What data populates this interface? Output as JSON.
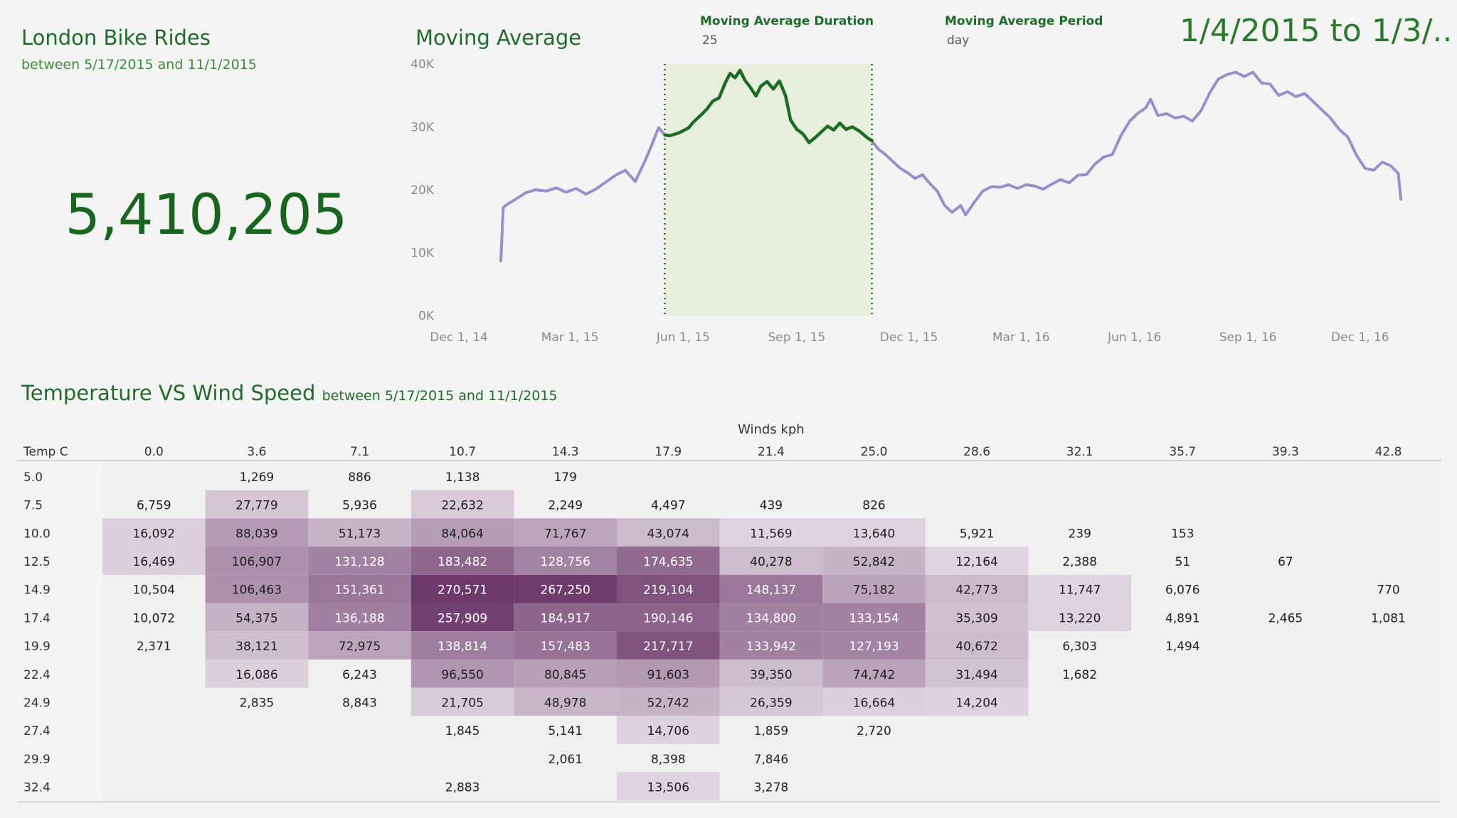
{
  "header": {
    "title": "London Bike Rides",
    "subtitle": "between 5/17/2015 and 11/1/2015",
    "kpi": "5,410,205"
  },
  "moving_average": {
    "title": "Moving Average",
    "duration_label": "Moving Average Duration",
    "duration_value": "25",
    "period_label": "Moving Average Period",
    "period_value": "day",
    "date_range": "1/4/2015 to 1/3/.."
  },
  "heatmap_header": {
    "title": "Temperature VS Wind Speed",
    "subtitle": "between 5/17/2015 and 11/1/2015"
  },
  "colors": {
    "line_other": "#9a8fcc",
    "line_selected": "#1b6b22",
    "selection_band": "#e7eedb",
    "heat_low": "#ebe5ec",
    "heat_high": "#6e3a6c"
  },
  "chart_data": [
    {
      "type": "line",
      "title": "Moving Average",
      "xlabel": "",
      "ylabel": "",
      "x_ticks": [
        "Dec 1, 14",
        "Mar 1, 15",
        "Jun 1, 15",
        "Sep 1, 15",
        "Dec 1, 15",
        "Mar 1, 16",
        "Jun 1, 16",
        "Sep 1, 16",
        "Dec 1, 16"
      ],
      "y_ticks": [
        "0K",
        "10K",
        "20K",
        "30K",
        "40K"
      ],
      "ylim": [
        0,
        40000
      ],
      "x_range": [
        "2014-11-20",
        "2017-01-18"
      ],
      "selection": {
        "start": "2015-05-17",
        "end": "2015-11-01"
      },
      "series": [
        {
          "points": [
            [
              "2015-01-04",
              8700
            ],
            [
              "2015-01-06",
              17200
            ],
            [
              "2015-01-10",
              17800
            ],
            [
              "2015-01-16",
              18500
            ],
            [
              "2015-01-24",
              19500
            ],
            [
              "2015-02-01",
              20000
            ],
            [
              "2015-02-10",
              19800
            ],
            [
              "2015-02-18",
              20300
            ],
            [
              "2015-02-26",
              19600
            ],
            [
              "2015-03-06",
              20200
            ],
            [
              "2015-03-14",
              19300
            ],
            [
              "2015-03-22",
              20100
            ],
            [
              "2015-03-30",
              21200
            ],
            [
              "2015-04-07",
              22300
            ],
            [
              "2015-04-15",
              23100
            ],
            [
              "2015-04-23",
              21300
            ],
            [
              "2015-05-01",
              24600
            ],
            [
              "2015-05-06",
              26900
            ],
            [
              "2015-05-12",
              29900
            ],
            [
              "2015-05-17",
              28700
            ],
            [
              "2015-05-21",
              28600
            ],
            [
              "2015-05-28",
              29000
            ],
            [
              "2015-06-05",
              29800
            ],
            [
              "2015-06-10",
              30900
            ],
            [
              "2015-06-16",
              32000
            ],
            [
              "2015-06-20",
              32800
            ],
            [
              "2015-06-25",
              34100
            ],
            [
              "2015-06-30",
              34600
            ],
            [
              "2015-07-05",
              37000
            ],
            [
              "2015-07-09",
              38500
            ],
            [
              "2015-07-13",
              37800
            ],
            [
              "2015-07-17",
              39000
            ],
            [
              "2015-07-21",
              37400
            ],
            [
              "2015-07-25",
              36400
            ],
            [
              "2015-07-30",
              34900
            ],
            [
              "2015-08-03",
              36500
            ],
            [
              "2015-08-08",
              37200
            ],
            [
              "2015-08-13",
              36000
            ],
            [
              "2015-08-18",
              37300
            ],
            [
              "2015-08-23",
              34900
            ],
            [
              "2015-08-27",
              31100
            ],
            [
              "2015-09-01",
              29600
            ],
            [
              "2015-09-06",
              28900
            ],
            [
              "2015-09-11",
              27500
            ],
            [
              "2015-09-16",
              28300
            ],
            [
              "2015-09-21",
              29200
            ],
            [
              "2015-09-26",
              30100
            ],
            [
              "2015-10-01",
              29500
            ],
            [
              "2015-10-06",
              30600
            ],
            [
              "2015-10-11",
              29600
            ],
            [
              "2015-10-16",
              30000
            ],
            [
              "2015-10-22",
              29300
            ],
            [
              "2015-10-28",
              28300
            ],
            [
              "2015-11-01",
              27800
            ],
            [
              "2015-11-06",
              26500
            ],
            [
              "2015-11-12",
              25600
            ],
            [
              "2015-11-18",
              24500
            ],
            [
              "2015-11-24",
              23400
            ],
            [
              "2015-11-30",
              22700
            ],
            [
              "2015-12-06",
              21800
            ],
            [
              "2015-12-12",
              22400
            ],
            [
              "2015-12-18",
              21000
            ],
            [
              "2015-12-24",
              19800
            ],
            [
              "2015-12-30",
              17500
            ],
            [
              "2016-01-05",
              16400
            ],
            [
              "2016-01-12",
              17500
            ],
            [
              "2016-01-16",
              16000
            ],
            [
              "2016-01-23",
              18000
            ],
            [
              "2016-01-30",
              19800
            ],
            [
              "2016-02-06",
              20500
            ],
            [
              "2016-02-13",
              20400
            ],
            [
              "2016-02-20",
              20800
            ],
            [
              "2016-02-27",
              20200
            ],
            [
              "2016-03-05",
              20800
            ],
            [
              "2016-03-12",
              20600
            ],
            [
              "2016-03-19",
              20100
            ],
            [
              "2016-03-26",
              20900
            ],
            [
              "2016-04-02",
              21600
            ],
            [
              "2016-04-09",
              21100
            ],
            [
              "2016-04-16",
              22300
            ],
            [
              "2016-04-23",
              22400
            ],
            [
              "2016-04-30",
              24100
            ],
            [
              "2016-05-07",
              25200
            ],
            [
              "2016-05-14",
              25600
            ],
            [
              "2016-05-21",
              28600
            ],
            [
              "2016-05-28",
              30900
            ],
            [
              "2016-06-04",
              32200
            ],
            [
              "2016-06-10",
              33000
            ],
            [
              "2016-06-14",
              34400
            ],
            [
              "2016-06-20",
              31800
            ],
            [
              "2016-06-27",
              32100
            ],
            [
              "2016-07-04",
              31400
            ],
            [
              "2016-07-11",
              31700
            ],
            [
              "2016-07-18",
              30900
            ],
            [
              "2016-07-25",
              32600
            ],
            [
              "2016-08-01",
              35400
            ],
            [
              "2016-08-08",
              37600
            ],
            [
              "2016-08-15",
              38300
            ],
            [
              "2016-08-22",
              38700
            ],
            [
              "2016-08-29",
              38000
            ],
            [
              "2016-09-05",
              38700
            ],
            [
              "2016-09-12",
              37000
            ],
            [
              "2016-09-19",
              36800
            ],
            [
              "2016-09-26",
              35000
            ],
            [
              "2016-10-03",
              35600
            ],
            [
              "2016-10-10",
              34800
            ],
            [
              "2016-10-17",
              35300
            ],
            [
              "2016-10-24",
              34000
            ],
            [
              "2016-10-31",
              32700
            ],
            [
              "2016-11-07",
              31400
            ],
            [
              "2016-11-14",
              29600
            ],
            [
              "2016-11-21",
              28400
            ],
            [
              "2016-11-28",
              25500
            ],
            [
              "2016-12-05",
              23400
            ],
            [
              "2016-12-12",
              23100
            ],
            [
              "2016-12-19",
              24400
            ],
            [
              "2016-12-26",
              23800
            ],
            [
              "2017-01-01",
              22600
            ],
            [
              "2017-01-03",
              18500
            ]
          ]
        }
      ]
    },
    {
      "type": "heatmap",
      "title": "Temperature VS Wind Speed",
      "xlabel": "Winds kph",
      "ylabel": "Temp C",
      "x_categories": [
        "0.0",
        "3.6",
        "7.1",
        "10.7",
        "14.3",
        "17.9",
        "21.4",
        "25.0",
        "28.6",
        "32.1",
        "35.7",
        "39.3",
        "42.8"
      ],
      "y_categories": [
        "5.0",
        "7.5",
        "10.0",
        "12.5",
        "14.9",
        "17.4",
        "19.9",
        "22.4",
        "24.9",
        "27.4",
        "29.9",
        "32.4"
      ],
      "values": [
        [
          null,
          1269,
          886,
          1138,
          179,
          null,
          null,
          null,
          null,
          null,
          null,
          null,
          null
        ],
        [
          6759,
          27779,
          5936,
          22632,
          2249,
          4497,
          439,
          826,
          null,
          null,
          null,
          null,
          null
        ],
        [
          16092,
          88039,
          51173,
          84064,
          71767,
          43074,
          11569,
          13640,
          5921,
          239,
          153,
          null,
          null
        ],
        [
          16469,
          106907,
          131128,
          183482,
          128756,
          174635,
          40278,
          52842,
          12164,
          2388,
          51,
          67,
          null
        ],
        [
          10504,
          106463,
          151361,
          270571,
          267250,
          219104,
          148137,
          75182,
          42773,
          11747,
          6076,
          null,
          770
        ],
        [
          10072,
          54375,
          136188,
          257909,
          184917,
          190146,
          134800,
          133154,
          35309,
          13220,
          4891,
          2465,
          1081
        ],
        [
          2371,
          38121,
          72975,
          138814,
          157483,
          217717,
          133942,
          127193,
          40672,
          6303,
          1494,
          null,
          null
        ],
        [
          null,
          16086,
          6243,
          96550,
          80845,
          91603,
          39350,
          74742,
          31494,
          1682,
          null,
          null,
          null
        ],
        [
          null,
          2835,
          8843,
          21705,
          48978,
          52742,
          26359,
          16664,
          14204,
          null,
          null,
          null,
          null
        ],
        [
          null,
          null,
          null,
          1845,
          5141,
          14706,
          1859,
          2720,
          null,
          null,
          null,
          null,
          null
        ],
        [
          null,
          null,
          null,
          null,
          2061,
          8398,
          7846,
          null,
          null,
          null,
          null,
          null,
          null
        ],
        [
          null,
          null,
          null,
          2883,
          null,
          13506,
          3278,
          null,
          null,
          null,
          null,
          null,
          null
        ]
      ]
    }
  ]
}
